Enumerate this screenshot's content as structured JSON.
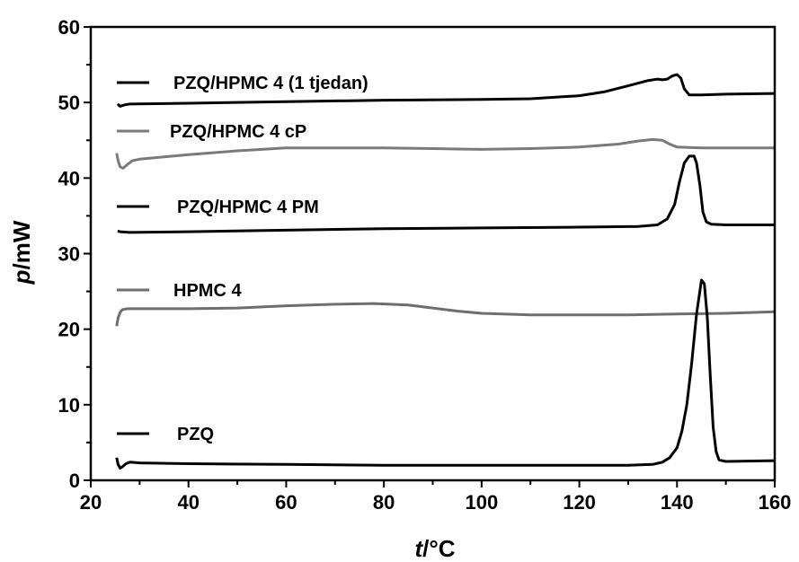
{
  "chart_data": {
    "type": "line",
    "xlabel": {
      "italic": "t",
      "rest": "/°C"
    },
    "ylabel": {
      "italic": "p",
      "rest": "/mW"
    },
    "xlim": [
      20,
      160
    ],
    "ylim": [
      0,
      60
    ],
    "xticks": [
      20,
      40,
      60,
      80,
      100,
      120,
      140,
      160
    ],
    "yticks": [
      0,
      10,
      20,
      30,
      40,
      50,
      60
    ],
    "grid": false,
    "legend_placement": "inline-left",
    "series": [
      {
        "name": "PZQ/HPMC 4 (1 tjedan)",
        "color": "#000000",
        "points": [
          [
            25.5,
            49.8
          ],
          [
            26,
            49.5
          ],
          [
            27,
            49.7
          ],
          [
            28,
            49.8
          ],
          [
            40,
            49.9
          ],
          [
            60,
            50.1
          ],
          [
            80,
            50.3
          ],
          [
            100,
            50.4
          ],
          [
            110,
            50.5
          ],
          [
            120,
            50.9
          ],
          [
            125,
            51.4
          ],
          [
            130,
            52.2
          ],
          [
            134,
            52.9
          ],
          [
            136,
            53.1
          ],
          [
            137,
            53.0
          ],
          [
            138,
            53.1
          ],
          [
            139,
            53.5
          ],
          [
            140,
            53.7
          ],
          [
            140.8,
            53.2
          ],
          [
            141.5,
            51.8
          ],
          [
            142.5,
            51.0
          ],
          [
            145,
            51.0
          ],
          [
            150,
            51.1
          ],
          [
            160,
            51.2
          ]
        ]
      },
      {
        "name": "PZQ/HPMC 4 cP",
        "color": "#7a7a7a",
        "points": [
          [
            25.3,
            43.3
          ],
          [
            25.6,
            42.3
          ],
          [
            26,
            41.5
          ],
          [
            26.6,
            41.3
          ],
          [
            27.5,
            41.8
          ],
          [
            28.5,
            42.3
          ],
          [
            30,
            42.5
          ],
          [
            40,
            43.1
          ],
          [
            50,
            43.6
          ],
          [
            60,
            44.0
          ],
          [
            70,
            44.0
          ],
          [
            80,
            44.0
          ],
          [
            90,
            43.9
          ],
          [
            100,
            43.8
          ],
          [
            110,
            43.9
          ],
          [
            120,
            44.1
          ],
          [
            128,
            44.5
          ],
          [
            132,
            44.9
          ],
          [
            135,
            45.1
          ],
          [
            137,
            45.0
          ],
          [
            138.5,
            44.5
          ],
          [
            140,
            44.1
          ],
          [
            145,
            44.0
          ],
          [
            160,
            44.0
          ]
        ]
      },
      {
        "name": "PZQ/HPMC 4 PM",
        "color": "#000000",
        "points": [
          [
            25.5,
            33.0
          ],
          [
            26,
            32.9
          ],
          [
            28,
            32.8
          ],
          [
            40,
            32.9
          ],
          [
            60,
            33.1
          ],
          [
            80,
            33.3
          ],
          [
            100,
            33.4
          ],
          [
            120,
            33.5
          ],
          [
            132,
            33.6
          ],
          [
            136,
            33.8
          ],
          [
            138,
            34.6
          ],
          [
            139.5,
            36.5
          ],
          [
            140.5,
            39.5
          ],
          [
            141.5,
            42.0
          ],
          [
            142.5,
            42.9
          ],
          [
            143.5,
            42.9
          ],
          [
            144,
            42.0
          ],
          [
            144.7,
            39.0
          ],
          [
            145.3,
            35.5
          ],
          [
            146,
            34.2
          ],
          [
            147,
            33.9
          ],
          [
            150,
            33.8
          ],
          [
            160,
            33.8
          ]
        ]
      },
      {
        "name": "HPMC 4",
        "color": "#6e6e6e",
        "points": [
          [
            25.3,
            20.4
          ],
          [
            25.6,
            21.5
          ],
          [
            26,
            22.2
          ],
          [
            26.5,
            22.6
          ],
          [
            27.5,
            22.7
          ],
          [
            30,
            22.7
          ],
          [
            40,
            22.7
          ],
          [
            50,
            22.8
          ],
          [
            60,
            23.1
          ],
          [
            70,
            23.3
          ],
          [
            78,
            23.4
          ],
          [
            85,
            23.2
          ],
          [
            90,
            22.8
          ],
          [
            95,
            22.4
          ],
          [
            100,
            22.1
          ],
          [
            110,
            21.9
          ],
          [
            120,
            21.9
          ],
          [
            130,
            21.9
          ],
          [
            140,
            22.0
          ],
          [
            150,
            22.1
          ],
          [
            160,
            22.3
          ]
        ]
      },
      {
        "name": "PZQ",
        "color": "#000000",
        "points": [
          [
            25.3,
            3.0
          ],
          [
            25.6,
            2.1
          ],
          [
            26,
            1.6
          ],
          [
            26.5,
            1.8
          ],
          [
            27.2,
            2.2
          ],
          [
            28,
            2.4
          ],
          [
            30,
            2.3
          ],
          [
            40,
            2.2
          ],
          [
            60,
            2.1
          ],
          [
            80,
            2.0
          ],
          [
            100,
            2.0
          ],
          [
            120,
            2.0
          ],
          [
            130,
            2.0
          ],
          [
            135,
            2.1
          ],
          [
            137,
            2.4
          ],
          [
            138.5,
            3.0
          ],
          [
            140,
            4.3
          ],
          [
            141,
            6.5
          ],
          [
            142,
            10.0
          ],
          [
            143,
            15.5
          ],
          [
            144,
            22.0
          ],
          [
            145,
            26.5
          ],
          [
            145.6,
            26.0
          ],
          [
            146.2,
            21.5
          ],
          [
            146.8,
            14.0
          ],
          [
            147.4,
            7.0
          ],
          [
            148,
            3.8
          ],
          [
            148.6,
            2.7
          ],
          [
            150,
            2.5
          ],
          [
            160,
            2.6
          ]
        ]
      }
    ]
  }
}
